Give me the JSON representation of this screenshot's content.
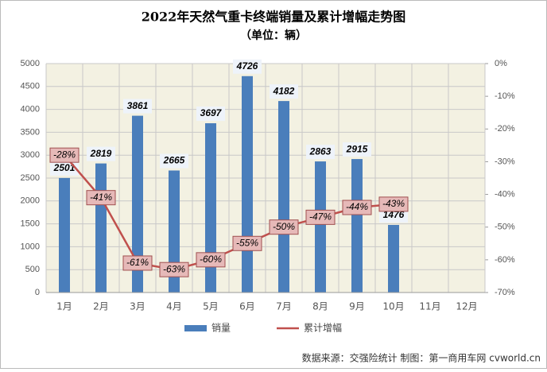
{
  "chart_data": {
    "type": "bar_line",
    "title": "2022年天然气重卡终端销量及累计增幅走势图",
    "subtitle": "（单位：辆）",
    "categories": [
      "1月",
      "2月",
      "3月",
      "4月",
      "5月",
      "6月",
      "7月",
      "8月",
      "9月",
      "10月",
      "11月",
      "12月"
    ],
    "series": [
      {
        "name": "销量",
        "type": "bar",
        "color": "#4a7ebb",
        "values": [
          2501,
          2819,
          3861,
          2665,
          3697,
          4726,
          4182,
          2863,
          2915,
          1476,
          null,
          null
        ]
      },
      {
        "name": "累计增幅",
        "type": "line",
        "axis": "y2",
        "color": "#c0504d",
        "values": [
          -28,
          -41,
          -61,
          -63,
          -60,
          -55,
          -50,
          -47,
          -44,
          -43,
          null,
          null
        ],
        "value_labels": [
          "-28%",
          "-41%",
          "-61%",
          "-63%",
          "-60%",
          "-55%",
          "-50%",
          "-47%",
          "-44%",
          "-43%",
          null,
          null
        ]
      }
    ],
    "ylim": [
      0,
      5000
    ],
    "yticks": [
      0,
      500,
      1000,
      1500,
      2000,
      2500,
      3000,
      3500,
      4000,
      4500,
      5000
    ],
    "y2lim": [
      -70,
      0
    ],
    "y2ticks": [
      {
        "value": -70,
        "label": "-70%"
      },
      {
        "value": -60,
        "label": "-60%"
      },
      {
        "value": -50,
        "label": "-50%"
      },
      {
        "value": -40,
        "label": "-40%"
      },
      {
        "value": -30,
        "label": "-30%"
      },
      {
        "value": -20,
        "label": "-20%"
      },
      {
        "value": -10,
        "label": "-10%"
      },
      {
        "value": 0,
        "label": "0%"
      }
    ],
    "grid": true,
    "legend": "bottom",
    "source": "数据来源：交强险统计 制图：第一商用车网 cvworld.cn"
  }
}
